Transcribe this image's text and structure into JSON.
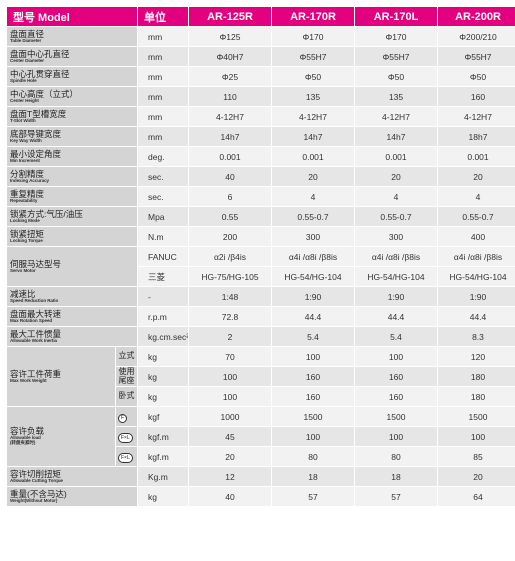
{
  "header": {
    "label": "型号 Model",
    "unit": "单位",
    "models": [
      "AR-125R",
      "AR-170R",
      "AR-170L",
      "AR-200R"
    ]
  },
  "rows": [
    {
      "cn": "盘面直径",
      "en": "Table Diameter",
      "unit": "mm",
      "v": [
        "Φ125",
        "Φ170",
        "Φ170",
        "Φ200/210"
      ]
    },
    {
      "cn": "盘面中心孔直径",
      "en": "Center Diameter",
      "unit": "mm",
      "v": [
        "Φ40H7",
        "Φ55H7",
        "Φ55H7",
        "Φ55H7"
      ]
    },
    {
      "cn": "中心孔贯穿直径",
      "en": "Spindle Hole",
      "unit": "mm",
      "v": [
        "Φ25",
        "Φ50",
        "Φ50",
        "Φ50"
      ]
    },
    {
      "cn": "中心高度（立式）",
      "en": "Center Height",
      "unit": "mm",
      "v": [
        "110",
        "135",
        "135",
        "160"
      ]
    },
    {
      "cn": "盘面T型槽宽度",
      "en": "T-Slot Width",
      "unit": "mm",
      "v": [
        "4-12H7",
        "4-12H7",
        "4-12H7",
        "4-12H7"
      ]
    },
    {
      "cn": "底部导键宽度",
      "en": "Key Way Width",
      "unit": "mm",
      "v": [
        "14h7",
        "14h7",
        "14h7",
        "18h7"
      ]
    },
    {
      "cn": "最小设定角度",
      "en": "Min Increment",
      "unit": "deg.",
      "v": [
        "0.001",
        "0.001",
        "0.001",
        "0.001"
      ]
    },
    {
      "cn": "分割精度",
      "en": "Indexing Accuracy",
      "unit": "sec.",
      "v": [
        "40",
        "20",
        "20",
        "20"
      ]
    },
    {
      "cn": "重复精度",
      "en": "Repeatability",
      "unit": "sec.",
      "v": [
        "6",
        "4",
        "4",
        "4"
      ]
    },
    {
      "cn": "锁紧方式:气压/油压",
      "en": "Locking Mode",
      "unit": "Mpa",
      "v": [
        "0.55",
        "0.55-0.7",
        "0.55-0.7",
        "0.55-0.7"
      ]
    },
    {
      "cn": "锁紧扭矩",
      "en": "Locking Torque",
      "unit": "N.m",
      "v": [
        "200",
        "300",
        "300",
        "400"
      ]
    }
  ],
  "servo": {
    "cn": "伺服马达型号",
    "en": "Servo Motor",
    "fanuc": {
      "brand": "FANUC",
      "v": [
        "α2i /β4is",
        "α4i /α8i /β8is",
        "α4i /α8i /β8is",
        "α4i /α8i /β8is"
      ]
    },
    "mitsu": {
      "brand": "三菱",
      "v": [
        "HG-75/HG-105",
        "HG-54/HG-104",
        "HG-54/HG-104",
        "HG-54/HG-104"
      ]
    }
  },
  "rows2": [
    {
      "cn": "减速比",
      "en": "Speed Reduction Ratio",
      "unit": "-",
      "v": [
        "1:48",
        "1:90",
        "1:90",
        "1:90"
      ]
    },
    {
      "cn": "盘面最大转速",
      "en": "Max Rotation Speed",
      "unit": "r.p.m",
      "v": [
        "72.8",
        "44.4",
        "44.4",
        "44.4"
      ]
    },
    {
      "cn": "最大工件惯量",
      "en": "Allowable Work Inertia",
      "unit": "kg.cm.sec²",
      "v": [
        "2",
        "5.4",
        "5.4",
        "8.3"
      ]
    }
  ],
  "work_weight": {
    "cn": "容许工件荷重",
    "en": "Max Work Weight",
    "rows": [
      {
        "sub": "立式",
        "unit": "kg",
        "v": [
          "70",
          "100",
          "100",
          "120"
        ]
      },
      {
        "sub": "使用尾座",
        "unit": "kg",
        "v": [
          "100",
          "160",
          "160",
          "180"
        ]
      },
      {
        "sub": "卧式",
        "unit": "kg",
        "v": [
          "100",
          "160",
          "160",
          "180"
        ]
      }
    ]
  },
  "load": {
    "cn": "容许负载",
    "en": "Allowable load",
    "note": "(转盘夹紧时)",
    "rows": [
      {
        "icon": "F",
        "unit": "kgf",
        "v": [
          "1000",
          "1500",
          "1500",
          "1500"
        ]
      },
      {
        "icon": "F×L",
        "unit": "kgf.m",
        "v": [
          "45",
          "100",
          "100",
          "100"
        ]
      },
      {
        "icon": "F×L",
        "unit": "kgf.m",
        "v": [
          "20",
          "80",
          "80",
          "85"
        ]
      }
    ]
  },
  "rows3": [
    {
      "cn": "容许切削扭矩",
      "en": "Allowable Cutting Torque",
      "unit": "Kg.m",
      "v": [
        "12",
        "18",
        "18",
        "20"
      ]
    },
    {
      "cn": "重量(不含马达)",
      "en": "Weight(Without Motor)",
      "unit": "kg",
      "v": [
        "40",
        "57",
        "57",
        "64"
      ]
    }
  ],
  "colors": {
    "header": "#e3007e",
    "label_bg": "#d4d4d4",
    "cell_bg": "#f2f2f2"
  }
}
